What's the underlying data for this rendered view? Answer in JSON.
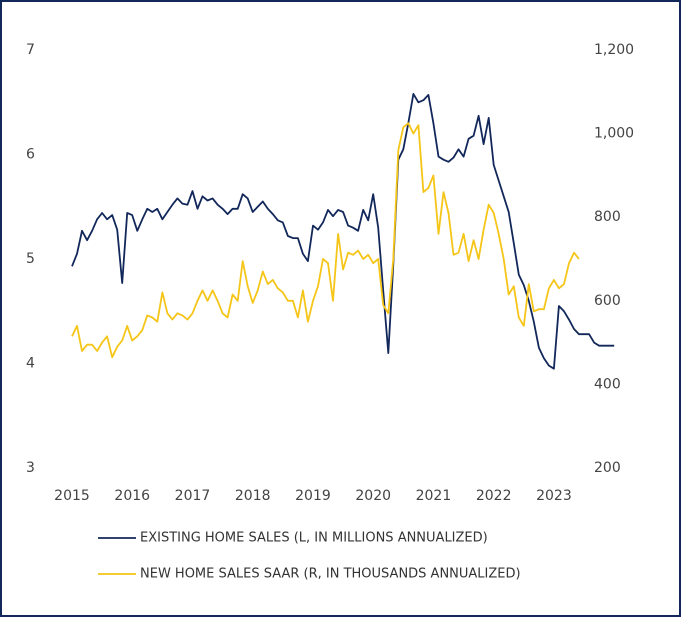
{
  "chart_data": {
    "type": "line",
    "categories": [
      "2015",
      null,
      null,
      null,
      null,
      null,
      null,
      null,
      null,
      null,
      null,
      null,
      "2016",
      null,
      null,
      null,
      null,
      null,
      null,
      null,
      null,
      null,
      null,
      null,
      "2017",
      null,
      null,
      null,
      null,
      null,
      null,
      null,
      null,
      null,
      null,
      null,
      "2018",
      null,
      null,
      null,
      null,
      null,
      null,
      null,
      null,
      null,
      null,
      null,
      "2019",
      null,
      null,
      null,
      null,
      null,
      null,
      null,
      null,
      null,
      null,
      null,
      "2020",
      null,
      null,
      null,
      null,
      null,
      null,
      null,
      null,
      null,
      null,
      null,
      "2021",
      null,
      null,
      null,
      null,
      null,
      null,
      null,
      null,
      null,
      null,
      null,
      "2022",
      null,
      null,
      null,
      null,
      null,
      null,
      null,
      null,
      null,
      null,
      null,
      "2023",
      null,
      null,
      null,
      null,
      null,
      null,
      null,
      null,
      null,
      null,
      null,
      null
    ],
    "series": [
      {
        "name": "EXISTING HOME SALES (L, IN MILLIONS ANNUALIZED)",
        "color": "#12275a",
        "values": [
          4.93,
          5.05,
          5.27,
          5.18,
          5.27,
          5.38,
          5.44,
          5.38,
          5.42,
          5.28,
          4.77,
          5.44,
          5.42,
          5.27,
          5.38,
          5.48,
          5.45,
          5.48,
          5.38,
          5.45,
          5.52,
          5.58,
          5.53,
          5.52,
          5.65,
          5.48,
          5.6,
          5.56,
          5.58,
          5.52,
          5.48,
          5.43,
          5.48,
          5.48,
          5.62,
          5.58,
          5.45,
          5.5,
          5.55,
          5.48,
          5.43,
          5.37,
          5.35,
          5.22,
          5.2,
          5.2,
          5.05,
          4.98,
          5.32,
          5.28,
          5.35,
          5.47,
          5.41,
          5.47,
          5.45,
          5.32,
          5.3,
          5.27,
          5.47,
          5.37,
          5.62,
          5.3,
          4.7,
          4.1,
          4.95,
          5.95,
          6.05,
          6.3,
          6.58,
          6.5,
          6.52,
          6.57,
          6.3,
          5.98,
          5.95,
          5.93,
          5.97,
          6.05,
          5.98,
          6.15,
          6.18,
          6.37,
          6.1,
          6.35,
          5.9,
          5.75,
          5.6,
          5.45,
          5.15,
          4.85,
          4.75,
          4.6,
          4.4,
          4.15,
          4.05,
          3.98,
          3.95,
          4.55,
          4.5,
          4.42,
          4.33,
          4.28,
          4.28,
          4.28,
          4.2,
          4.17,
          4.17,
          4.17,
          4.17
        ]
      },
      {
        "name": "NEW HOME SALES SAAR (R, IN THOUSANDS ANNUALIZED)",
        "color": "#f5c518",
        "axis": "y2",
        "values": [
          515,
          540,
          480,
          495,
          495,
          480,
          500,
          515,
          465,
          490,
          505,
          540,
          505,
          515,
          530,
          565,
          560,
          550,
          620,
          570,
          555,
          570,
          565,
          555,
          570,
          600,
          625,
          600,
          625,
          600,
          570,
          560,
          615,
          600,
          695,
          635,
          595,
          625,
          670,
          640,
          650,
          630,
          620,
          600,
          600,
          560,
          625,
          550,
          600,
          635,
          700,
          690,
          600,
          760,
          675,
          715,
          710,
          720,
          700,
          710,
          690,
          700,
          590,
          570,
          700,
          960,
          1015,
          1025,
          1000,
          1020,
          860,
          870,
          900,
          760,
          860,
          810,
          710,
          715,
          760,
          695,
          745,
          700,
          770,
          830,
          810,
          760,
          700,
          615,
          635,
          560,
          540,
          640,
          575,
          580,
          580,
          630,
          650,
          630,
          640,
          690,
          715,
          700,
          null,
          null,
          null,
          null,
          null,
          null,
          null
        ]
      }
    ],
    "ylim": [
      3,
      7
    ],
    "yticks": [
      3,
      4,
      5,
      6,
      7
    ],
    "y2lim": [
      200,
      1200
    ],
    "y2ticks": [
      200,
      400,
      600,
      800,
      {
        "value": 1000,
        "label": "1,000"
      },
      {
        "value": 1200,
        "label": "1,200"
      }
    ],
    "grid": false,
    "legend": "bottom"
  }
}
